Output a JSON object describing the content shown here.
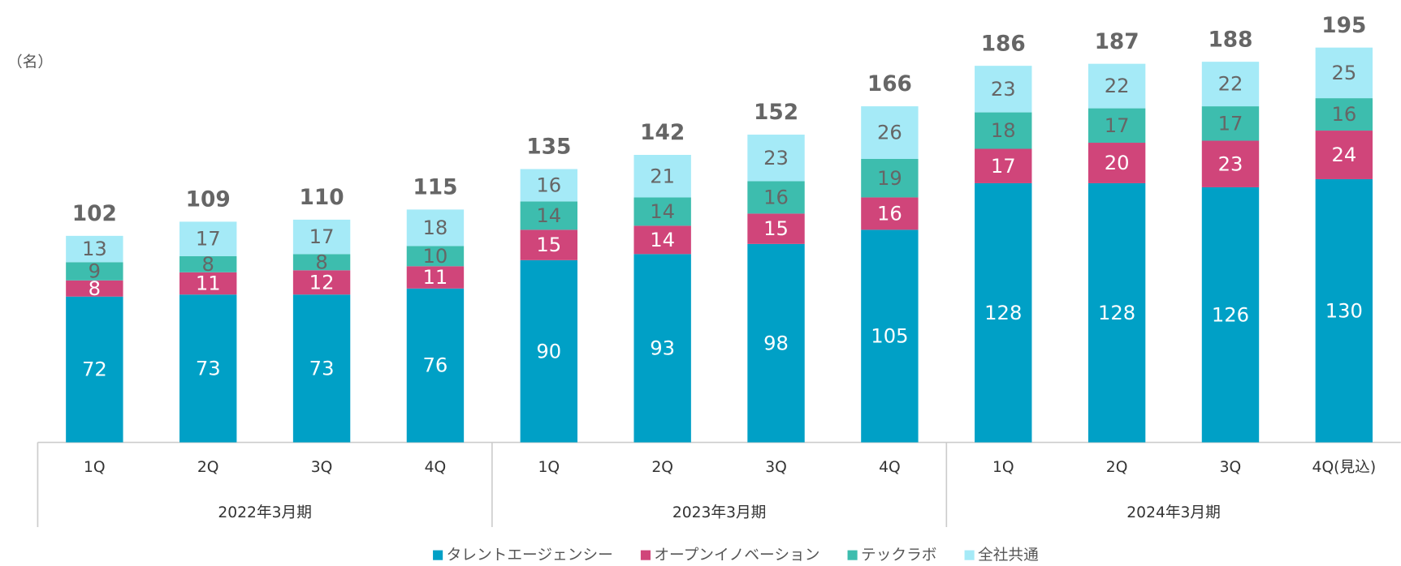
{
  "chart_data": {
    "type": "stacked_bar",
    "unit_label": "（名）",
    "categories": [
      "1Q",
      "2Q",
      "3Q",
      "4Q",
      "1Q",
      "2Q",
      "3Q",
      "4Q",
      "1Q",
      "2Q",
      "3Q",
      "4Q(見込)"
    ],
    "category_groups": [
      "2022年3月期",
      "2023年3月期",
      "2024年3月期"
    ],
    "series": [
      {
        "name": "タレントエージェンシー",
        "color": "#00a0c6",
        "label_color": "#ffffff",
        "values": [
          72,
          73,
          73,
          76,
          90,
          93,
          98,
          105,
          128,
          128,
          126,
          130
        ]
      },
      {
        "name": "オープンイノベーション",
        "color": "#d0457a",
        "label_color": "#ffffff",
        "values": [
          8,
          11,
          12,
          11,
          15,
          14,
          15,
          16,
          17,
          20,
          23,
          24
        ]
      },
      {
        "name": "テックラボ",
        "color": "#3dbdae",
        "label_color": "#666666",
        "values": [
          9,
          8,
          8,
          10,
          14,
          14,
          16,
          19,
          18,
          17,
          17,
          16
        ]
      },
      {
        "name": "全社共通",
        "color": "#a5eaf7",
        "label_color": "#666666",
        "values": [
          13,
          17,
          17,
          18,
          16,
          21,
          23,
          26,
          23,
          22,
          22,
          25
        ]
      }
    ],
    "totals": [
      102,
      109,
      110,
      115,
      135,
      142,
      152,
      166,
      186,
      187,
      188,
      195
    ],
    "ylim": [
      0,
      200
    ]
  }
}
